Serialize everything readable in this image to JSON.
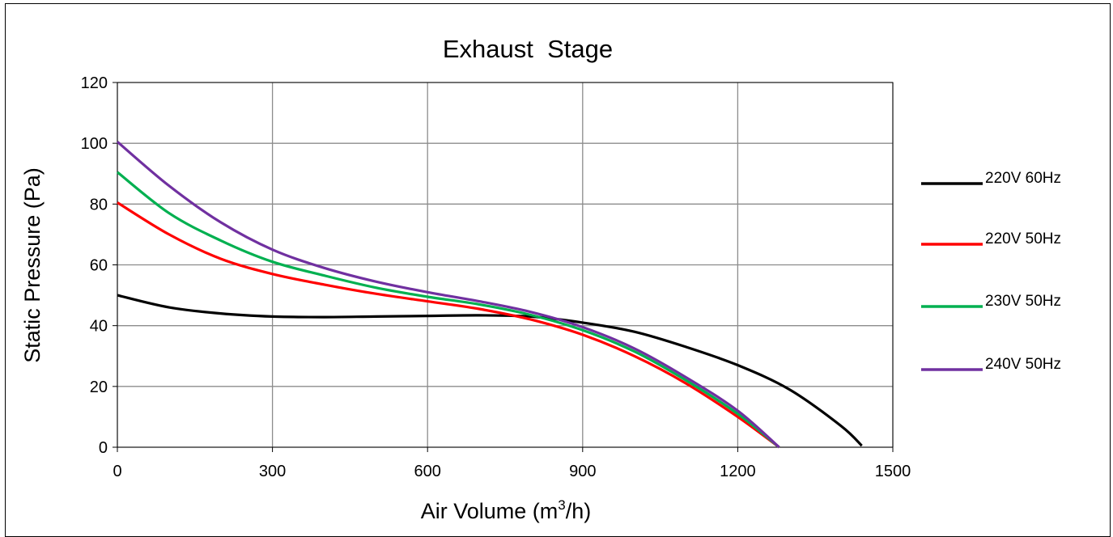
{
  "chart_data": {
    "type": "line",
    "title": "Exhaust  Stage",
    "xlabel": {
      "main": "Air Volume (m",
      "sup": "3",
      "tail": "/h)"
    },
    "ylabel": "Static Pressure (Pa)",
    "xlim": [
      0,
      1500
    ],
    "ylim": [
      0,
      120
    ],
    "xticks": [
      0,
      300,
      600,
      900,
      1200,
      1500
    ],
    "yticks": [
      0,
      20,
      40,
      60,
      80,
      100,
      120
    ],
    "grid": true,
    "legend_position": "right",
    "series": [
      {
        "name": "220V 60Hz",
        "color": "#000000",
        "x": [
          0,
          100,
          200,
          300,
          400,
          500,
          600,
          700,
          800,
          900,
          1000,
          1100,
          1200,
          1300,
          1400,
          1440
        ],
        "y": [
          50,
          46,
          44,
          43,
          42.8,
          43,
          43.2,
          43.4,
          43,
          41,
          38,
          33,
          27,
          19,
          7,
          0.5
        ]
      },
      {
        "name": "220V 50Hz",
        "color": "#ff0000",
        "x": [
          0,
          100,
          200,
          300,
          400,
          500,
          600,
          700,
          800,
          900,
          1000,
          1100,
          1200,
          1280
        ],
        "y": [
          80.5,
          70,
          62,
          57,
          53.5,
          50.5,
          48,
          45.5,
          42,
          37,
          30,
          21,
          10,
          0
        ]
      },
      {
        "name": "230V 50Hz",
        "color": "#00b050",
        "x": [
          0,
          100,
          200,
          300,
          400,
          500,
          600,
          700,
          800,
          900,
          1000,
          1100,
          1200,
          1280
        ],
        "y": [
          90.5,
          77,
          68,
          61,
          56.5,
          52.5,
          49.5,
          47,
          43.5,
          38.5,
          31.5,
          22,
          11,
          0
        ]
      },
      {
        "name": "240V 50Hz",
        "color": "#7030a0",
        "x": [
          0,
          100,
          200,
          300,
          400,
          500,
          600,
          700,
          800,
          900,
          1000,
          1100,
          1200,
          1280
        ],
        "y": [
          100.5,
          86,
          74,
          65,
          59,
          54.5,
          51,
          48,
          44.5,
          39.5,
          32.5,
          23,
          12,
          0
        ]
      }
    ]
  }
}
